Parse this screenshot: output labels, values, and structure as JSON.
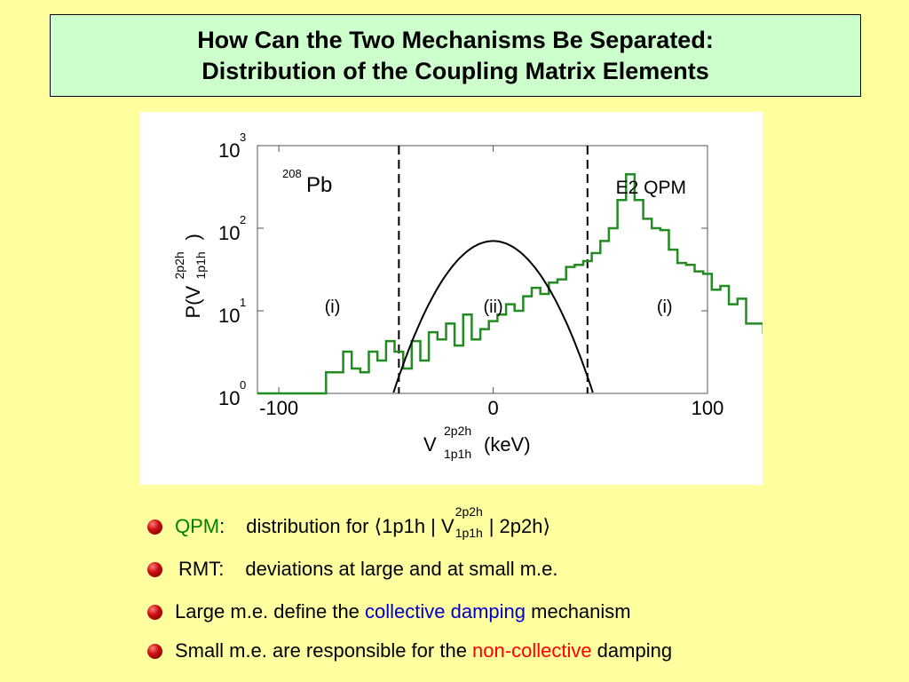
{
  "slide": {
    "title_line1": "How Can the Two Mechanisms Be Separated:",
    "title_line2": "Distribution of the Coupling Matrix Elements"
  },
  "chart_data": {
    "type": "histogram",
    "x_tick_labels": [
      "-100",
      "0",
      "100"
    ],
    "y_tick_labels": [
      {
        "base": "10",
        "exp": "0"
      },
      {
        "base": "10",
        "exp": "1"
      },
      {
        "base": "10",
        "exp": "2"
      },
      {
        "base": "10",
        "exp": "3"
      }
    ],
    "xlim": [
      -110,
      100
    ],
    "ylim": [
      1,
      1000
    ],
    "yscale": "log",
    "xlabel": {
      "main": "V",
      "sup": "2p2h",
      "sub": "1p1h",
      "unit": "(keV)"
    },
    "ylabel": {
      "prefix": "P(V",
      "sup": "2p2h",
      "sub": "1p1h",
      "suffix": ")"
    },
    "nucleus": {
      "mass": "208",
      "symbol": "Pb"
    },
    "model_label": "E2 QPM",
    "region_labels": [
      {
        "text": "(i)",
        "x": -75,
        "color": "#0000CC"
      },
      {
        "text": "(ii)",
        "x": 0,
        "color": "#FF0000"
      },
      {
        "text": "(i)",
        "x": 80,
        "color": "#0000CC"
      }
    ],
    "cut_lines_x": [
      -44,
      44
    ],
    "histogram": {
      "color": "#228B22",
      "bin_width": 4,
      "bin_edges_start": -110,
      "values": [
        1,
        1,
        1,
        1,
        1,
        1,
        1,
        1,
        1.8,
        1.8,
        3.2,
        2,
        1.8,
        3.2,
        2.5,
        4.3,
        3.2,
        2,
        4.3,
        2.5,
        5.5,
        4.5,
        7,
        3.8,
        9,
        4.5,
        6,
        7.5,
        9,
        12,
        10,
        15,
        19,
        16,
        22,
        24,
        34,
        36,
        40,
        50,
        70,
        100,
        220,
        450,
        220,
        130,
        100,
        95,
        55,
        38,
        36,
        30,
        28,
        18,
        20,
        12,
        14,
        7,
        7,
        5.5,
        5.2,
        2.5,
        1.8,
        4,
        2.5,
        1.8,
        1.5,
        2.3,
        2.3,
        1,
        1.1,
        1,
        1.1,
        1.3,
        1,
        1,
        1,
        1.2,
        1,
        1,
        1,
        1,
        1,
        1,
        1,
        1,
        1
      ]
    },
    "fit_curve": {
      "type": "gaussian",
      "color": "#000000",
      "amplitude": 70,
      "sigma": 16,
      "x_range": [
        -52,
        52
      ]
    }
  },
  "bullets": [
    {
      "pre": "",
      "accent": "QPM",
      "accent_color": "#008000",
      "post": ":",
      "rest1": "distribution for ⟨1p1h | V",
      "op_sup": "2p2h",
      "op_sub": "1p1h",
      "rest2": "| 2p2h⟩"
    },
    {
      "label": "RMT:",
      "text": "deviations at large and at small m.e."
    },
    {
      "pre": "Large m.e. define the ",
      "accent": "collective damping",
      "accent_color": "#0000CC",
      "post": " mechanism"
    },
    {
      "pre": "Small m.e. are responsible for the ",
      "accent": "non-collective",
      "accent_color": "#FF0000",
      "post": " damping"
    }
  ],
  "colors": {
    "background": "#FFFFA0",
    "title_box": "#CCFFCC",
    "bullet": "#CC1010"
  }
}
